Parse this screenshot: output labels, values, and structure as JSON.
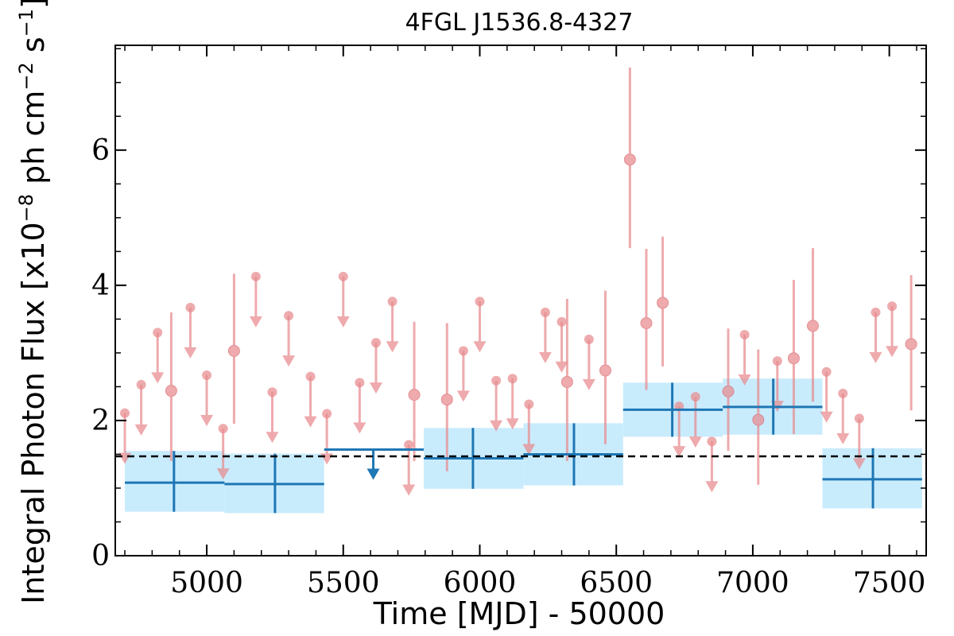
{
  "chart_data": {
    "type": "scatter",
    "title": "4FGL J1536.8-4327",
    "xlabel": "Time [MJD] - 50000",
    "ylabel": "Integral Photon Flux [x10^-8 ph cm^-2 s^-1]",
    "ylabel_parts": {
      "prefix": "Integral Photon Flux [x10",
      "exp1": "−8",
      "mid": " ph cm",
      "exp2": "−2",
      "mid2": " s",
      "exp3": "−1",
      "suffix": "]"
    },
    "xlim": [
      4665,
      7635
    ],
    "ylim": [
      0,
      7.55
    ],
    "x_ticks": [
      5000,
      5500,
      6000,
      6500,
      7000,
      7500
    ],
    "x_tick_labels": [
      "5000",
      "5500",
      "6000",
      "6500",
      "7000",
      "7500"
    ],
    "y_ticks": [
      0,
      2,
      4,
      6
    ],
    "y_tick_labels": [
      "0",
      "2",
      "4",
      "6"
    ],
    "reference_line": {
      "y": 1.47,
      "style": "dashed"
    },
    "colors": {
      "monthly": "#e88a8e",
      "yearly": "#1f77b4",
      "yearly_band": "#c9ecfd",
      "reference": "#000000"
    },
    "series": [
      {
        "points": [
          {
            "x": 4870,
            "y": 2.44,
            "lo": 1.4,
            "hi": 3.6
          },
          {
            "x": 5100,
            "y": 3.03,
            "lo": 1.95,
            "hi": 4.17
          },
          {
            "x": 5760,
            "y": 2.38,
            "lo": 1.4,
            "hi": 3.46
          },
          {
            "x": 5880,
            "y": 2.31,
            "lo": 1.25,
            "hi": 3.44
          },
          {
            "x": 6320,
            "y": 2.57,
            "lo": 1.4,
            "hi": 3.8
          },
          {
            "x": 6460,
            "y": 2.74,
            "lo": 1.65,
            "hi": 3.92
          },
          {
            "x": 6550,
            "y": 5.86,
            "lo": 4.55,
            "hi": 7.22
          },
          {
            "x": 6610,
            "y": 3.44,
            "lo": 2.45,
            "hi": 4.54
          },
          {
            "x": 6670,
            "y": 3.74,
            "lo": 2.8,
            "hi": 4.72
          },
          {
            "x": 6910,
            "y": 2.43,
            "lo": 1.55,
            "hi": 3.36
          },
          {
            "x": 7020,
            "y": 2.01,
            "lo": 1.05,
            "hi": 3.05
          },
          {
            "x": 7150,
            "y": 2.92,
            "lo": 1.8,
            "hi": 4.08
          },
          {
            "x": 7220,
            "y": 3.4,
            "lo": 2.28,
            "hi": 4.55
          },
          {
            "x": 7580,
            "y": 3.13,
            "lo": 2.15,
            "hi": 4.15
          }
        ],
        "upper_limits": [
          {
            "x": 4700,
            "y": 2.11
          },
          {
            "x": 4760,
            "y": 2.53
          },
          {
            "x": 4820,
            "y": 3.3
          },
          {
            "x": 4940,
            "y": 3.67
          },
          {
            "x": 5000,
            "y": 2.67
          },
          {
            "x": 5060,
            "y": 1.88
          },
          {
            "x": 5180,
            "y": 4.13
          },
          {
            "x": 5240,
            "y": 2.42
          },
          {
            "x": 5300,
            "y": 3.55
          },
          {
            "x": 5380,
            "y": 2.65
          },
          {
            "x": 5440,
            "y": 2.1
          },
          {
            "x": 5500,
            "y": 4.13
          },
          {
            "x": 5560,
            "y": 2.56
          },
          {
            "x": 5620,
            "y": 3.15
          },
          {
            "x": 5680,
            "y": 3.76
          },
          {
            "x": 5740,
            "y": 1.64
          },
          {
            "x": 5940,
            "y": 3.03
          },
          {
            "x": 6000,
            "y": 3.76
          },
          {
            "x": 6060,
            "y": 2.59
          },
          {
            "x": 6120,
            "y": 2.62
          },
          {
            "x": 6180,
            "y": 2.24
          },
          {
            "x": 6240,
            "y": 3.6
          },
          {
            "x": 6300,
            "y": 3.46
          },
          {
            "x": 6400,
            "y": 3.2
          },
          {
            "x": 6730,
            "y": 2.21
          },
          {
            "x": 6790,
            "y": 2.35
          },
          {
            "x": 6850,
            "y": 1.69
          },
          {
            "x": 6970,
            "y": 3.27
          },
          {
            "x": 7090,
            "y": 2.88
          },
          {
            "x": 7270,
            "y": 2.72
          },
          {
            "x": 7330,
            "y": 2.4
          },
          {
            "x": 7390,
            "y": 2.03
          },
          {
            "x": 7450,
            "y": 3.6
          },
          {
            "x": 7510,
            "y": 3.69
          }
        ]
      },
      {
        "bins": [
          {
            "x0": 4700,
            "x1": 5065,
            "xc": 4880,
            "y": 1.08,
            "lo": 0.65,
            "hi": 1.55
          },
          {
            "x0": 5065,
            "x1": 5430,
            "xc": 5250,
            "y": 1.06,
            "lo": 0.63,
            "hi": 1.51
          },
          {
            "x0": 5795,
            "x1": 6160,
            "xc": 5975,
            "y": 1.44,
            "lo": 0.99,
            "hi": 1.89
          },
          {
            "x0": 6160,
            "x1": 6525,
            "xc": 6345,
            "y": 1.5,
            "lo": 1.04,
            "hi": 1.96
          },
          {
            "x0": 6525,
            "x1": 6890,
            "xc": 6705,
            "y": 2.16,
            "lo": 1.76,
            "hi": 2.56
          },
          {
            "x0": 6890,
            "x1": 7255,
            "xc": 7075,
            "y": 2.2,
            "lo": 1.79,
            "hi": 2.62
          },
          {
            "x0": 7255,
            "x1": 7620,
            "xc": 7440,
            "y": 1.13,
            "lo": 0.7,
            "hi": 1.59
          }
        ],
        "upper_limits": [
          {
            "x0": 5430,
            "x1": 5795,
            "xc": 5610,
            "y": 1.57
          }
        ]
      }
    ]
  }
}
